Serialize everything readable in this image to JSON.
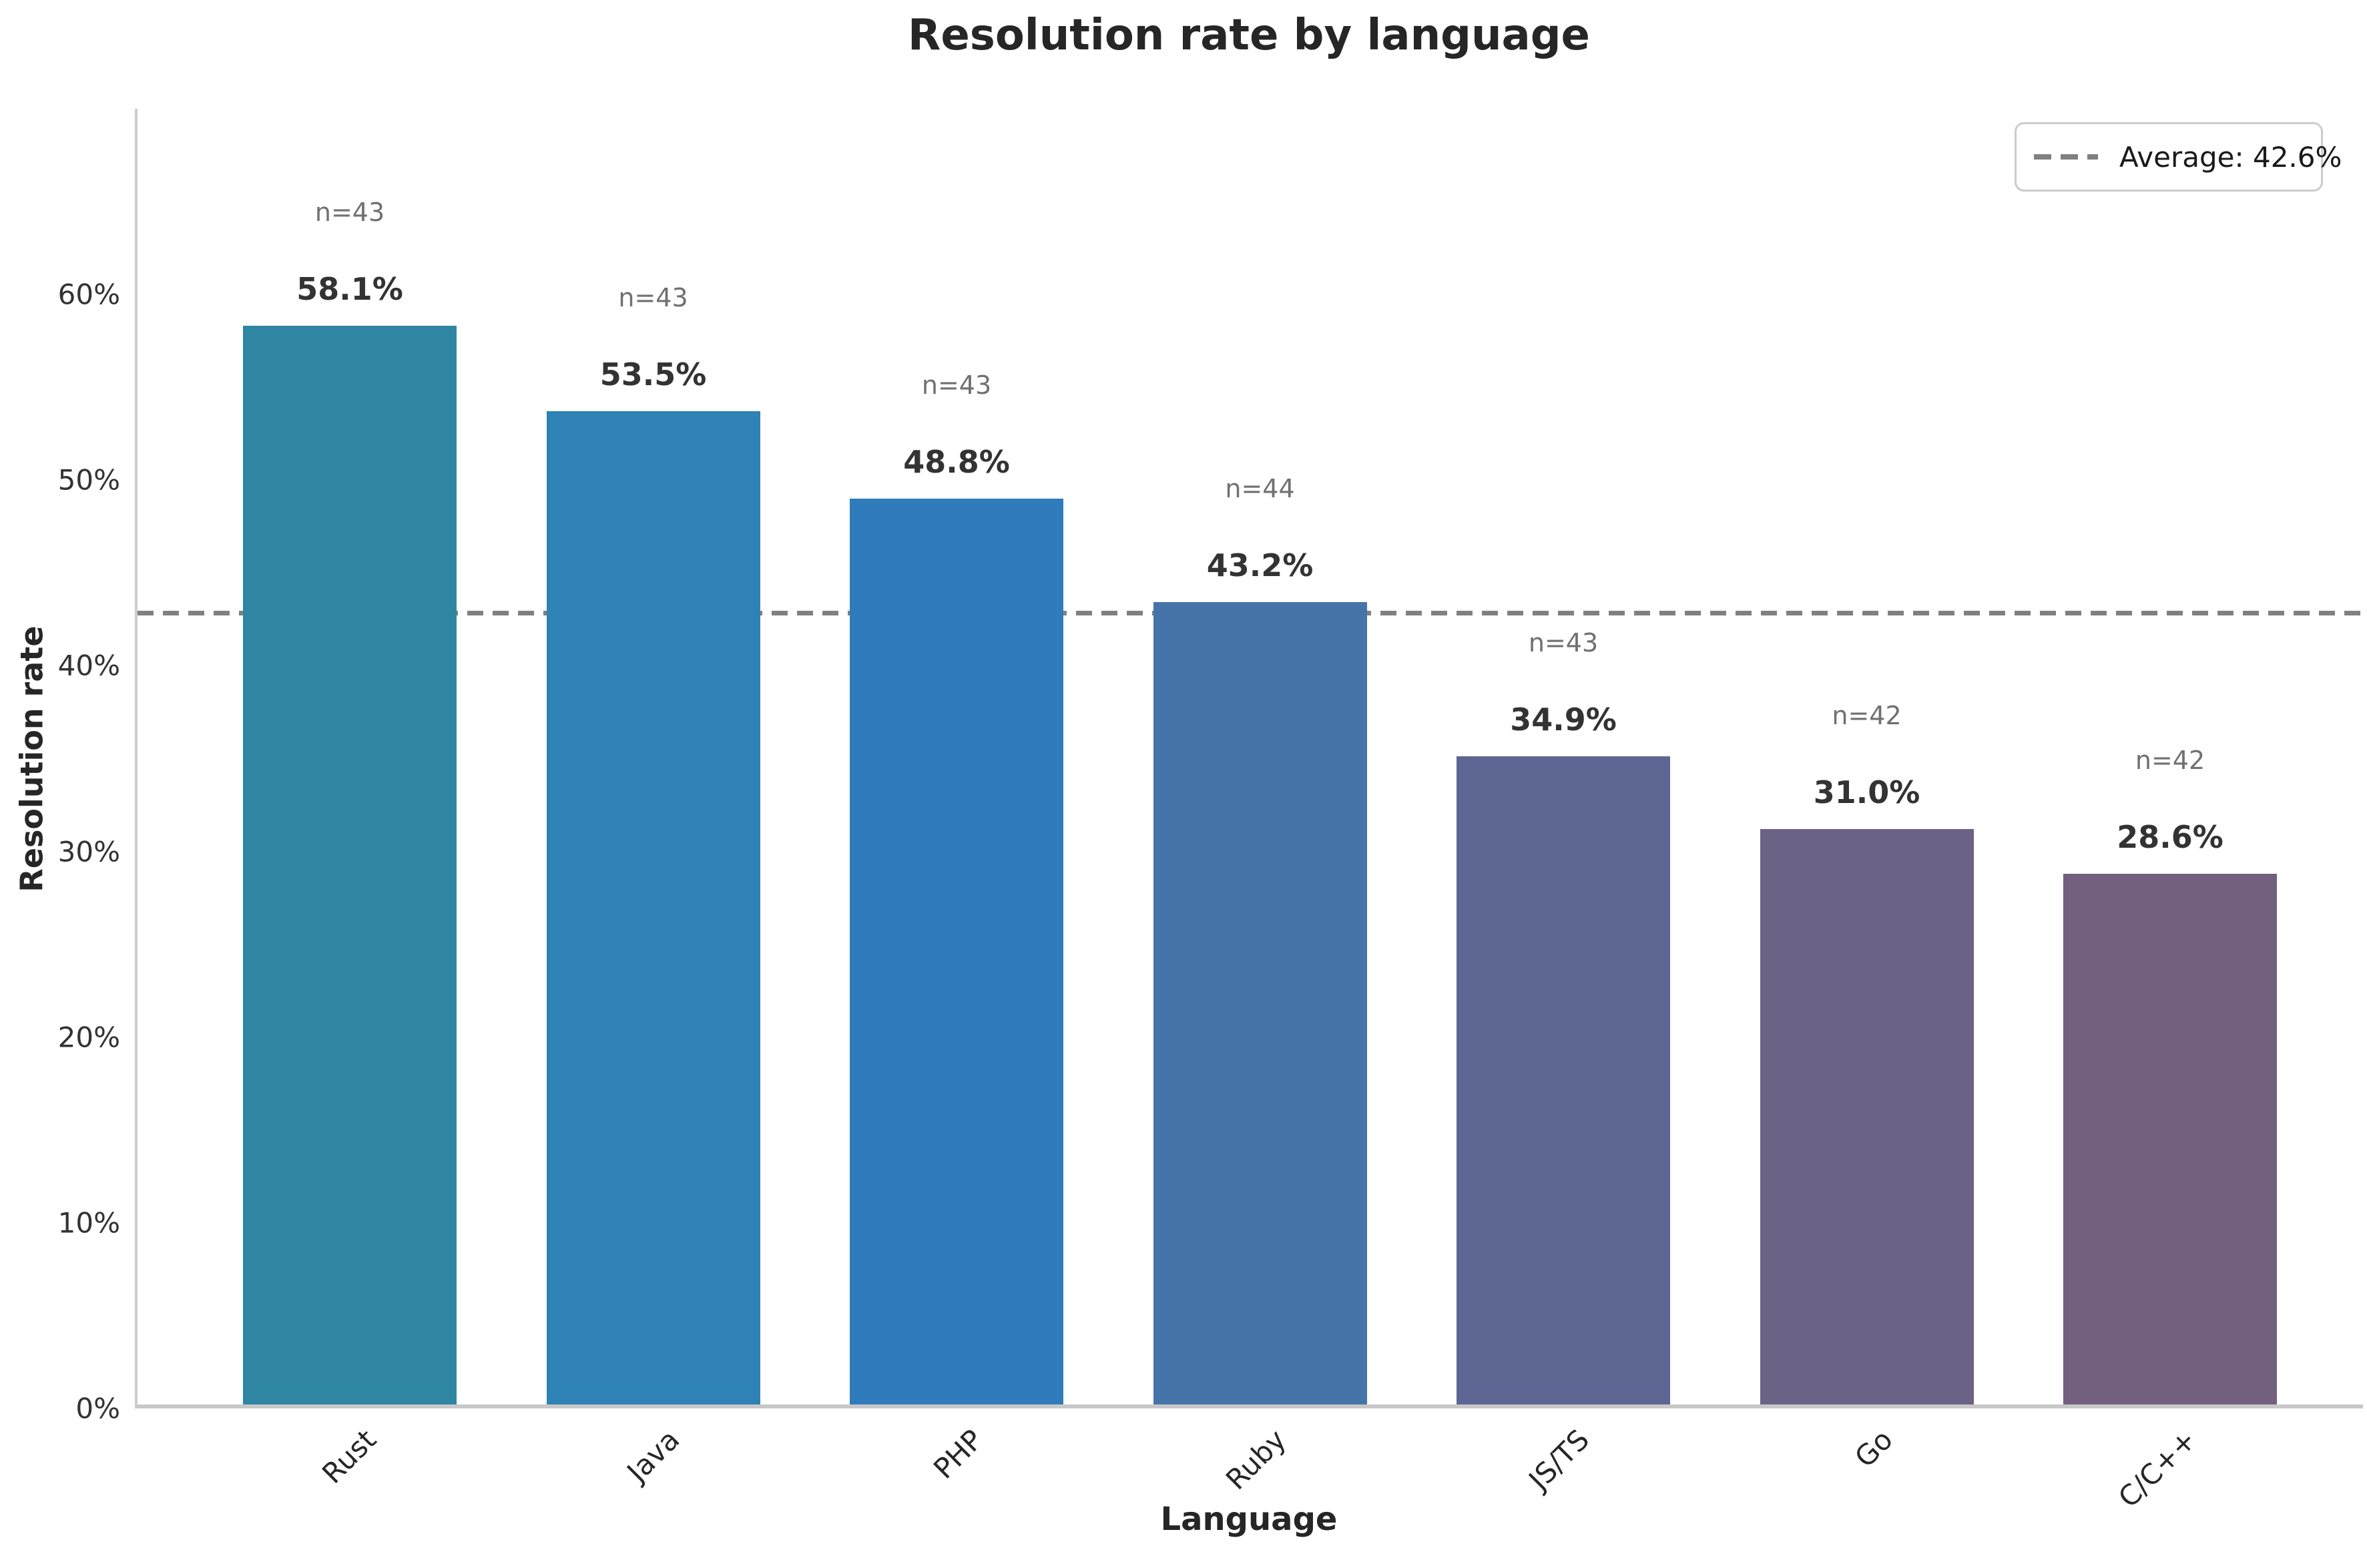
{
  "chart_data": {
    "type": "bar",
    "title": "Resolution rate by language",
    "xlabel": "Language",
    "ylabel": "Resolution rate",
    "categories": [
      "Rust",
      "Java",
      "PHP",
      "Ruby",
      "JS/TS",
      "Go",
      "C/C++"
    ],
    "values": [
      58.1,
      53.5,
      48.8,
      43.2,
      34.9,
      31.0,
      28.6
    ],
    "value_labels": [
      "58.1%",
      "53.5%",
      "48.8%",
      "43.2%",
      "34.9%",
      "31.0%",
      "28.6%"
    ],
    "n_labels": [
      "n=43",
      "n=43",
      "n=43",
      "n=44",
      "n=43",
      "n=42",
      "n=42"
    ],
    "bar_colors": [
      "#2e86a3",
      "#2e82b5",
      "#2f7bbc",
      "#4574a9",
      "#5d6692",
      "#6b6286",
      "#735f7e"
    ],
    "ylim": [
      0,
      70
    ],
    "ytick_values": [
      0,
      10,
      20,
      30,
      40,
      50,
      60
    ],
    "ytick_labels": [
      "0%",
      "10%",
      "20%",
      "30%",
      "40%",
      "50%",
      "60%"
    ],
    "grid": false,
    "legend_position": "upper right",
    "average": {
      "value": 42.6,
      "label": "Average: 42.6%",
      "line_color": "#808080"
    }
  }
}
